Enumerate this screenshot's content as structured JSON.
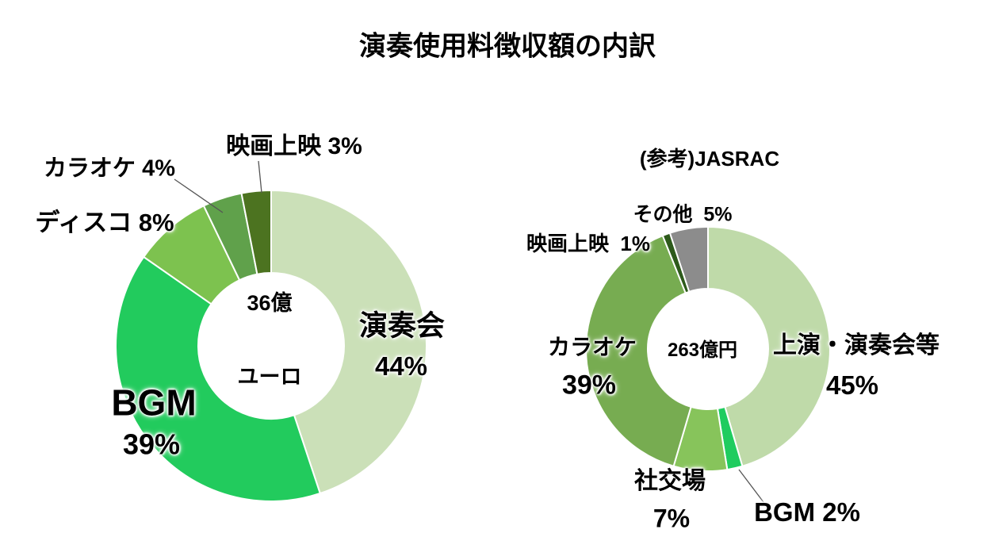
{
  "page": {
    "title": "演奏使用料徴収額の内訳",
    "background_color": "#FFFFFF",
    "text_color": "#000000"
  },
  "chart_data": [
    {
      "type": "pie",
      "variant": "donut",
      "start_angle_deg": 0,
      "direction": "clockwise",
      "center_text": [
        "36億",
        "ユーロ"
      ],
      "slices": [
        {
          "key": "ensokai",
          "label": "演奏会",
          "pct": 44,
          "color": "#CBE0B8"
        },
        {
          "key": "bgm",
          "label": "BGM",
          "pct": 39,
          "color": "#22CB5D"
        },
        {
          "key": "disco",
          "label": "ディスコ",
          "pct": 8,
          "color": "#7DC24F"
        },
        {
          "key": "karaoke",
          "label": "カラオケ",
          "pct": 4,
          "color": "#60A14B"
        },
        {
          "key": "eiga",
          "label": "映画上映",
          "pct": 3,
          "color": "#4C7320"
        }
      ]
    },
    {
      "type": "pie",
      "variant": "donut",
      "title": "(参考)JASRAC",
      "start_angle_deg": 0,
      "direction": "clockwise",
      "center_text": [
        "263億円"
      ],
      "slices": [
        {
          "key": "jouen",
          "label": "上演・演奏会等",
          "pct": 45,
          "color": "#BFDAA9"
        },
        {
          "key": "bgm",
          "label": "BGM",
          "pct": 2,
          "color": "#1FCC5F"
        },
        {
          "key": "shakoba",
          "label": "社交場",
          "pct": 7,
          "color": "#87C45B"
        },
        {
          "key": "karaoke",
          "label": "カラオケ",
          "pct": 39,
          "color": "#77AC51"
        },
        {
          "key": "eiga",
          "label": "映画上映",
          "pct": 1,
          "color": "#2D5A1B"
        },
        {
          "key": "sonota",
          "label": "その他",
          "pct": 5,
          "color": "#8C8C8C"
        }
      ]
    }
  ],
  "left_chart": {
    "labels": {
      "eiga": "映画上映 3%",
      "karaoke": "カラオケ 4%",
      "disco": "ディスコ 8%",
      "ensokai_name": "演奏会",
      "ensokai_pct": "44%",
      "bgm_name": "BGM",
      "bgm_pct": "39%"
    }
  },
  "right_chart": {
    "title": "(参考)JASRAC",
    "labels": {
      "sonota": "その他  5%",
      "eiga": "映画上映  1%",
      "jouen_name": "上演・演奏会等",
      "jouen_pct": "45%",
      "karaoke_name": "カラオケ",
      "karaoke_pct": "39%",
      "shakoba_name": "社交場",
      "shakoba_pct": "7%",
      "bgm": "BGM 2%",
      "center": "263億円"
    }
  }
}
